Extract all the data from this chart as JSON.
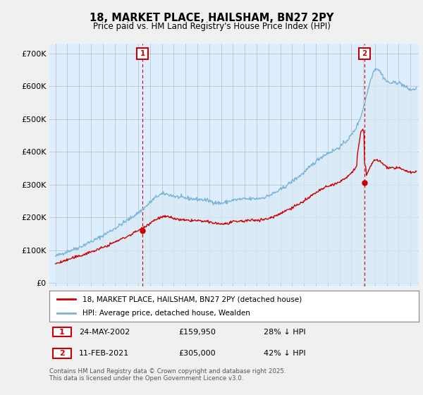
{
  "title": "18, MARKET PLACE, HAILSHAM, BN27 2PY",
  "subtitle": "Price paid vs. HM Land Registry's House Price Index (HPI)",
  "ylabel_ticks": [
    "£0",
    "£100K",
    "£200K",
    "£300K",
    "£400K",
    "£500K",
    "£600K",
    "£700K"
  ],
  "ytick_vals": [
    0,
    100000,
    200000,
    300000,
    400000,
    500000,
    600000,
    700000
  ],
  "ylim": [
    0,
    730000
  ],
  "xlim_start": 1994.5,
  "xlim_end": 2025.7,
  "hpi_color": "#7ab4d8",
  "hpi_fill_color": "#daeaf5",
  "price_color": "#cc0000",
  "marker1_x": 2002.38,
  "marker1_y_price": 159950,
  "marker2_x": 2021.12,
  "marker2_y_price": 305000,
  "legend_label1": "18, MARKET PLACE, HAILSHAM, BN27 2PY (detached house)",
  "legend_label2": "HPI: Average price, detached house, Wealden",
  "note1_num": "1",
  "note1_date": "24-MAY-2002",
  "note1_price": "£159,950",
  "note1_hpi": "28% ↓ HPI",
  "note2_num": "2",
  "note2_date": "11-FEB-2021",
  "note2_price": "£305,000",
  "note2_hpi": "42% ↓ HPI",
  "footer": "Contains HM Land Registry data © Crown copyright and database right 2025.\nThis data is licensed under the Open Government Licence v3.0.",
  "bg_color": "#f0f0f0",
  "plot_bg_color": "#ddeeff"
}
